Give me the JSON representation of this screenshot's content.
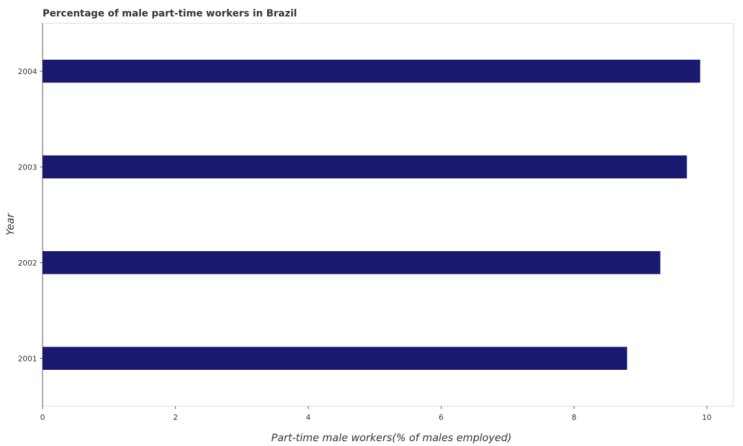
{
  "chart_data": {
    "type": "bar",
    "orientation": "horizontal",
    "title": "Percentage of male part-time workers in Brazil",
    "xlabel": "Part-time male workers(% of males employed)",
    "ylabel": "Year",
    "categories": [
      "2001",
      "2002",
      "2003",
      "2004"
    ],
    "values": [
      8.8,
      9.3,
      9.7,
      9.9
    ],
    "xlim": [
      0,
      10.4
    ],
    "xticks": [
      0,
      2,
      4,
      6,
      8,
      10
    ],
    "xtick_labels": [
      "0",
      "2",
      "4",
      "6",
      "8",
      "10"
    ],
    "grid": false,
    "legend": "none",
    "bar_color": "#191970"
  }
}
